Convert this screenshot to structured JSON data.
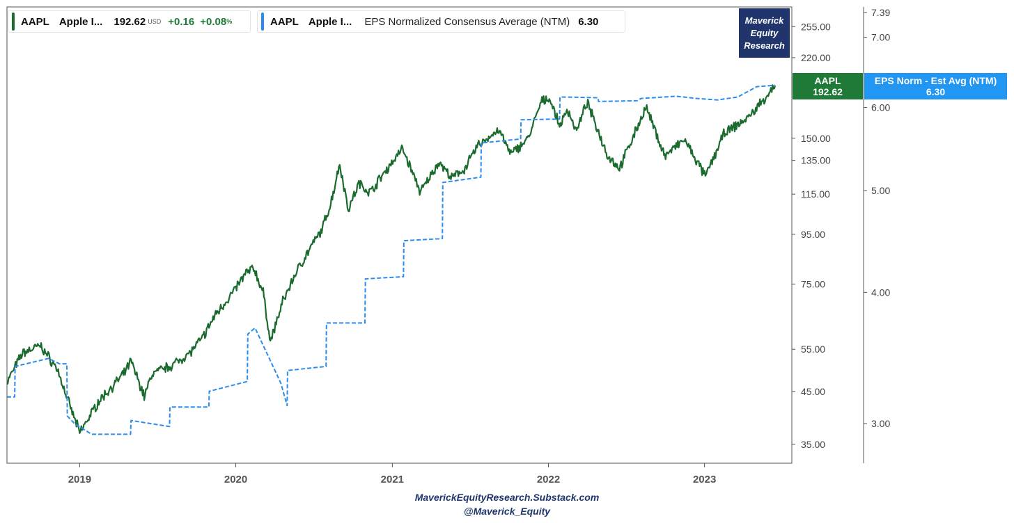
{
  "legend_price": {
    "ticker": "AAPL",
    "name": "Apple I...",
    "value": "192.62",
    "currency": "USD",
    "change": "+0.16",
    "change_pct": "+0.08",
    "pct_sign": "%"
  },
  "legend_eps": {
    "ticker": "AAPL",
    "name": "Apple I...",
    "description": "EPS Normalized Consensus Average (NTM)",
    "value": "6.30"
  },
  "brand": {
    "line1": "Maverick",
    "line2": "Equity",
    "line3": "Research"
  },
  "price_tag": {
    "line1": "AAPL",
    "line2": "192.62",
    "color": "#1e7a36"
  },
  "eps_tag": {
    "line1": "EPS Norm - Est Avg (NTM)",
    "line2": "6.30",
    "color": "#2196f3"
  },
  "footer": {
    "line1": "MaverickEquityResearch.Substack.com",
    "line2": "@Maverick_Equity"
  },
  "chart_data": {
    "type": "line",
    "x_range": [
      "2018-07-15",
      "2023-06-15"
    ],
    "x_tick_labels": [
      "2019",
      "2020",
      "2021",
      "2022",
      "2023"
    ],
    "x_tick_dates": [
      "2019-01-01",
      "2020-01-01",
      "2021-01-01",
      "2022-01-01",
      "2023-01-01"
    ],
    "left_axis": {
      "scale": "log",
      "ticks": [
        35,
        45,
        55,
        75,
        95,
        115,
        135,
        150,
        220,
        255
      ],
      "tick_labels": [
        "35.00",
        "45.00",
        "55.00",
        "75.00",
        "95.00",
        "115.00",
        "135.00",
        "150.00",
        "220.00",
        "255.00"
      ],
      "range": [
        32,
        280
      ]
    },
    "right_axis": {
      "scale": "log",
      "ticks": [
        3.0,
        4.0,
        5.0,
        6.0,
        7.0,
        7.39
      ],
      "tick_labels": [
        "3.00",
        "4.00",
        "5.00",
        "6.00",
        "7.00",
        "7.39"
      ],
      "range": [
        2.75,
        7.48
      ]
    },
    "series": [
      {
        "name": "AAPL Apple I...",
        "axis": "left",
        "color": "#1b6b2f",
        "style": "solid",
        "points": [
          [
            "2018-07-15",
            47
          ],
          [
            "2018-08-20",
            54
          ],
          [
            "2018-10-01",
            56
          ],
          [
            "2018-11-10",
            50
          ],
          [
            "2018-12-05",
            43
          ],
          [
            "2019-01-01",
            37
          ],
          [
            "2019-02-15",
            43
          ],
          [
            "2019-04-15",
            49
          ],
          [
            "2019-05-01",
            52
          ],
          [
            "2019-06-01",
            44
          ],
          [
            "2019-06-20",
            49
          ],
          [
            "2019-08-05",
            51
          ],
          [
            "2019-09-15",
            54
          ],
          [
            "2019-10-15",
            58
          ],
          [
            "2019-11-15",
            65
          ],
          [
            "2019-12-20",
            71
          ],
          [
            "2020-01-25",
            79
          ],
          [
            "2020-02-12",
            81
          ],
          [
            "2020-03-05",
            72
          ],
          [
            "2020-03-22",
            57
          ],
          [
            "2020-04-20",
            69
          ],
          [
            "2020-05-20",
            79
          ],
          [
            "2020-06-20",
            88
          ],
          [
            "2020-07-20",
            97
          ],
          [
            "2020-08-10",
            110
          ],
          [
            "2020-08-31",
            133
          ],
          [
            "2020-09-20",
            107
          ],
          [
            "2020-10-15",
            121
          ],
          [
            "2020-11-10",
            116
          ],
          [
            "2020-12-15",
            128
          ],
          [
            "2021-01-25",
            143
          ],
          [
            "2021-03-08",
            116
          ],
          [
            "2021-04-20",
            134
          ],
          [
            "2021-05-20",
            124
          ],
          [
            "2021-06-20",
            130
          ],
          [
            "2021-07-20",
            145
          ],
          [
            "2021-09-07",
            156
          ],
          [
            "2021-10-05",
            139
          ],
          [
            "2021-11-15",
            150
          ],
          [
            "2021-12-15",
            178
          ],
          [
            "2022-01-03",
            182
          ],
          [
            "2022-01-27",
            159
          ],
          [
            "2022-02-15",
            172
          ],
          [
            "2022-03-08",
            155
          ],
          [
            "2022-04-01",
            178
          ],
          [
            "2022-05-20",
            138
          ],
          [
            "2022-06-16",
            130
          ],
          [
            "2022-08-17",
            174
          ],
          [
            "2022-09-30",
            138
          ],
          [
            "2022-11-15",
            149
          ],
          [
            "2023-01-03",
            125
          ],
          [
            "2023-02-15",
            153
          ],
          [
            "2023-04-15",
            166
          ],
          [
            "2023-06-15",
            192.62
          ]
        ]
      },
      {
        "name": "AAPL Apple I... EPS Normalized Consensus Average (NTM)",
        "axis": "right",
        "color": "#2a8cf0",
        "style": "dashed",
        "points": [
          [
            "2018-07-15",
            3.18
          ],
          [
            "2018-08-02",
            3.18
          ],
          [
            "2018-08-03",
            3.4
          ],
          [
            "2018-10-20",
            3.46
          ],
          [
            "2018-11-15",
            3.42
          ],
          [
            "2018-12-02",
            3.42
          ],
          [
            "2018-12-03",
            3.05
          ],
          [
            "2018-12-20",
            3.0
          ],
          [
            "2019-01-29",
            2.93
          ],
          [
            "2019-04-30",
            2.93
          ],
          [
            "2019-05-01",
            3.02
          ],
          [
            "2019-07-30",
            2.98
          ],
          [
            "2019-07-31",
            3.11
          ],
          [
            "2019-10-30",
            3.11
          ],
          [
            "2019-10-31",
            3.22
          ],
          [
            "2020-01-28",
            3.29
          ],
          [
            "2020-01-29",
            3.65
          ],
          [
            "2020-02-15",
            3.7
          ],
          [
            "2020-04-15",
            3.28
          ],
          [
            "2020-04-30",
            3.12
          ],
          [
            "2020-05-01",
            3.37
          ],
          [
            "2020-07-30",
            3.4
          ],
          [
            "2020-07-31",
            3.74
          ],
          [
            "2020-10-29",
            3.74
          ],
          [
            "2020-10-30",
            4.12
          ],
          [
            "2021-01-27",
            4.14
          ],
          [
            "2021-01-28",
            4.48
          ],
          [
            "2021-04-28",
            4.5
          ],
          [
            "2021-04-29",
            5.09
          ],
          [
            "2021-07-27",
            5.15
          ],
          [
            "2021-07-28",
            5.55
          ],
          [
            "2021-10-28",
            5.6
          ],
          [
            "2021-10-29",
            5.84
          ],
          [
            "2022-01-27",
            5.85
          ],
          [
            "2022-01-28",
            6.14
          ],
          [
            "2022-04-27",
            6.13
          ],
          [
            "2022-04-28",
            6.08
          ],
          [
            "2022-07-28",
            6.09
          ],
          [
            "2022-08-05",
            6.12
          ],
          [
            "2022-10-27",
            6.15
          ],
          [
            "2022-12-15",
            6.12
          ],
          [
            "2023-02-01",
            6.1
          ],
          [
            "2023-03-20",
            6.14
          ],
          [
            "2023-05-03",
            6.28
          ],
          [
            "2023-06-15",
            6.3
          ]
        ]
      }
    ]
  }
}
